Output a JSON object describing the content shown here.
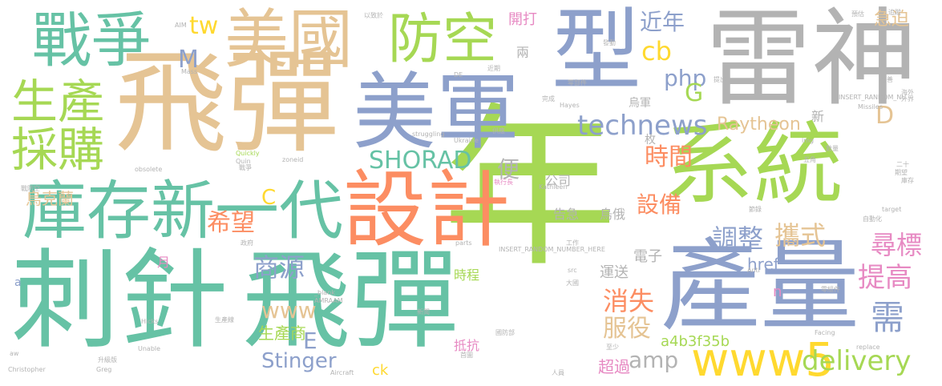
{
  "palette": {
    "green": "#a6d854",
    "teal": "#66c2a5",
    "blue": "#8da0cb",
    "orange": "#fc8d62",
    "tan": "#e5c494",
    "grey": "#b3b3b3",
    "pink": "#e78ac3",
    "yellow": "#ffd92f"
  },
  "words": [
    {
      "text": "年"
    },
    {
      "text": "飛彈"
    },
    {
      "text": "刺針"
    },
    {
      "text": "飛彈"
    },
    {
      "text": "產量"
    },
    {
      "text": "雷神"
    },
    {
      "text": "美軍"
    },
    {
      "text": "系統"
    },
    {
      "text": "型"
    },
    {
      "text": "設計"
    },
    {
      "text": "美國"
    },
    {
      "text": "戰爭"
    },
    {
      "text": "防空"
    },
    {
      "text": "庫存新一代"
    },
    {
      "text": "www5"
    },
    {
      "text": "生產"
    },
    {
      "text": "採購"
    },
    {
      "text": "technews"
    },
    {
      "text": "SHORAD"
    },
    {
      "text": "delivery"
    },
    {
      "text": "php"
    },
    {
      "text": "www"
    },
    {
      "text": "amp"
    },
    {
      "text": "Raytheon"
    },
    {
      "text": "Stinger"
    },
    {
      "text": "tw"
    },
    {
      "text": "cb"
    },
    {
      "text": "M"
    },
    {
      "text": "G"
    },
    {
      "text": "D"
    },
    {
      "text": "C"
    },
    {
      "text": "E"
    },
    {
      "text": "希望"
    },
    {
      "text": "商源"
    },
    {
      "text": "時間"
    },
    {
      "text": "設備"
    },
    {
      "text": "調整"
    },
    {
      "text": "攜式"
    },
    {
      "text": "提高"
    },
    {
      "text": "尋標"
    },
    {
      "text": "消失"
    },
    {
      "text": "服役"
    },
    {
      "text": "需"
    },
    {
      "text": "近年"
    },
    {
      "text": "便"
    },
    {
      "text": "烏克蘭"
    },
    {
      "text": "生產商"
    },
    {
      "text": "抵抗"
    },
    {
      "text": "超過"
    },
    {
      "text": "運送"
    },
    {
      "text": "電子"
    },
    {
      "text": "href"
    },
    {
      "text": "a4b3f35b"
    },
    {
      "text": "ck"
    },
    {
      "text": "告急"
    },
    {
      "text": "烏俄"
    },
    {
      "text": "公司"
    },
    {
      "text": "時程"
    },
    {
      "text": "急迫"
    },
    {
      "text": "開打"
    },
    {
      "text": "兩"
    },
    {
      "text": "新"
    },
    {
      "text": "枚"
    },
    {
      "text": "烏軍"
    },
    {
      "text": "月"
    },
    {
      "text": "n"
    },
    {
      "text": "a"
    },
    {
      "text": "INSERT_RANDOM_NUMBER_HERE"
    },
    {
      "text": "INSERT_RANDOM_NU"
    },
    {
      "text": "Ukraine"
    },
    {
      "text": "struggling"
    },
    {
      "text": "Hayes"
    },
    {
      "text": "Missiles"
    },
    {
      "text": "Quickly"
    },
    {
      "text": "Quin"
    },
    {
      "text": "zoneid"
    },
    {
      "text": "obsolete"
    },
    {
      "text": "_blank"
    },
    {
      "text": "AMRAAM"
    },
    {
      "text": "parts"
    },
    {
      "text": "Kathleen"
    },
    {
      "text": "Anti"
    },
    {
      "text": "Facing"
    },
    {
      "text": "replace"
    },
    {
      "text": "Christopher"
    },
    {
      "text": "Greg"
    },
    {
      "text": "Unable"
    },
    {
      "text": "Aircraft"
    },
    {
      "text": "Hicks"
    },
    {
      "text": "target"
    },
    {
      "text": "AIM"
    },
    {
      "text": "Mass"
    },
    {
      "text": "DE"
    },
    {
      "text": "img"
    },
    {
      "text": "src"
    },
    {
      "text": "aw"
    },
    {
      "text": "戰防空"
    },
    {
      "text": "零部件"
    },
    {
      "text": "供應"
    },
    {
      "text": "執行長"
    },
    {
      "text": "國防部"
    },
    {
      "text": "零組件"
    },
    {
      "text": "自動化"
    },
    {
      "text": "以致於"
    },
    {
      "text": "近期"
    },
    {
      "text": "發動"
    },
    {
      "text": "海外"
    },
    {
      "text": "升級版"
    },
    {
      "text": "首圖"
    },
    {
      "text": "人員"
    },
    {
      "text": "至少"
    },
    {
      "text": "完成"
    },
    {
      "text": "大國"
    },
    {
      "text": "節錄"
    },
    {
      "text": "預估"
    },
    {
      "text": "提出"
    },
    {
      "text": "外界"
    },
    {
      "text": "改善"
    },
    {
      "text": "五角"
    },
    {
      "text": "數量"
    },
    {
      "text": "二十"
    },
    {
      "text": "期望"
    },
    {
      "text": "庫存"
    },
    {
      "text": "生產線"
    },
    {
      "text": "政府"
    },
    {
      "text": "戰爭"
    },
    {
      "text": "追蹤"
    },
    {
      "text": "新聞"
    },
    {
      "text": "工作"
    }
  ]
}
